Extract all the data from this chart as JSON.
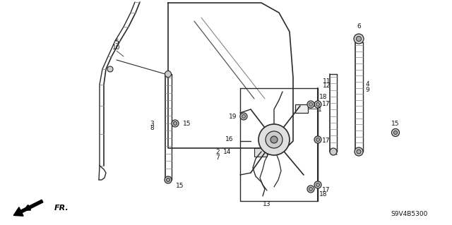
{
  "bg_color": "#ffffff",
  "line_color": "#2a2a2a",
  "text_color": "#111111",
  "code": "S9V4B5300",
  "figsize": [
    6.4,
    3.19
  ],
  "dpi": 100
}
